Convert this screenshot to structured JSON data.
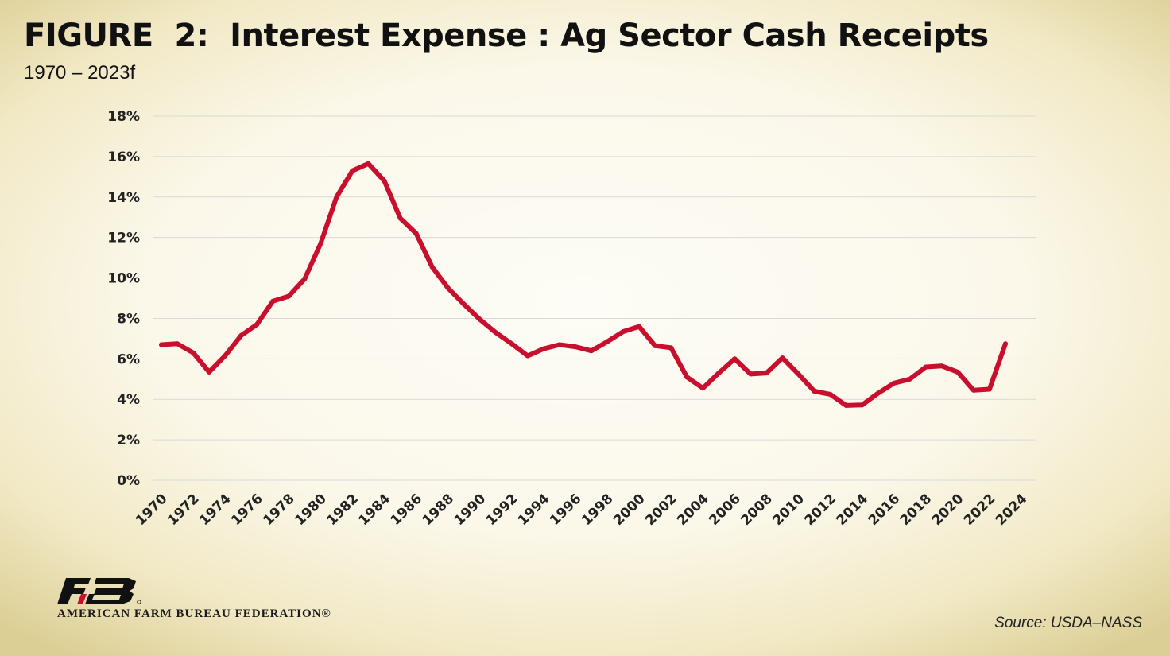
{
  "header": {
    "title": "FIGURE  2:  Interest Expense : Ag Sector Cash Receipts",
    "subtitle": "1970 – 2023f"
  },
  "footer": {
    "org_name": "AMERICAN FARM BUREAU FEDERATION®",
    "source": "Source: USDA–NASS"
  },
  "chart_data": {
    "type": "line",
    "title": "FIGURE  2:  Interest Expense : Ag Sector Cash Receipts",
    "subtitle": "1970 – 2023f",
    "xlabel": "",
    "ylabel": "",
    "xlim": [
      1970,
      2024
    ],
    "ylim": [
      0,
      18
    ],
    "y_ticks": [
      0,
      2,
      4,
      6,
      8,
      10,
      12,
      14,
      16,
      18
    ],
    "y_tick_labels": [
      "0%",
      "2%",
      "4%",
      "6%",
      "8%",
      "10%",
      "12%",
      "14%",
      "16%",
      "18%"
    ],
    "x_tick_labels": [
      "1970",
      "1972",
      "1974",
      "1976",
      "1978",
      "1980",
      "1982",
      "1984",
      "1986",
      "1988",
      "1990",
      "1992",
      "1994",
      "1996",
      "1998",
      "2000",
      "2002",
      "2004",
      "2006",
      "2008",
      "2010",
      "2012",
      "2014",
      "2016",
      "2018",
      "2020",
      "2022",
      "2024"
    ],
    "grid": "horizontal",
    "series": [
      {
        "color": "#c8102e",
        "x": [
          1970,
          1971,
          1972,
          1973,
          1974,
          1975,
          1976,
          1977,
          1978,
          1979,
          1980,
          1981,
          1982,
          1983,
          1984,
          1985,
          1986,
          1987,
          1988,
          1989,
          1990,
          1991,
          1992,
          1993,
          1994,
          1995,
          1996,
          1997,
          1998,
          1999,
          2000,
          2001,
          2002,
          2003,
          2004,
          2005,
          2006,
          2007,
          2008,
          2009,
          2010,
          2011,
          2012,
          2013,
          2014,
          2015,
          2016,
          2017,
          2018,
          2019,
          2020,
          2021,
          2022,
          2023
        ],
        "values": [
          6.7,
          6.75,
          6.3,
          5.35,
          6.15,
          7.15,
          7.7,
          8.85,
          9.1,
          9.95,
          11.7,
          14.0,
          15.3,
          15.65,
          14.8,
          12.95,
          12.2,
          10.55,
          9.5,
          8.7,
          7.95,
          7.3,
          6.75,
          6.15,
          6.5,
          6.7,
          6.6,
          6.4,
          6.85,
          7.35,
          7.6,
          6.65,
          6.55,
          5.1,
          4.55,
          5.3,
          6.0,
          5.25,
          5.3,
          6.05,
          5.25,
          4.4,
          4.25,
          3.7,
          3.72,
          4.3,
          4.8,
          5.0,
          5.6,
          5.65,
          5.35,
          4.45,
          4.5,
          6.75
        ]
      }
    ]
  }
}
